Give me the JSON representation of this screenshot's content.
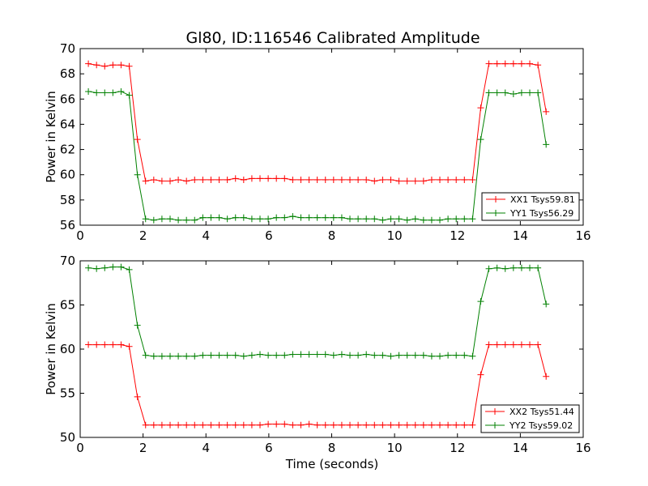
{
  "title": "Gl80, ID:116546 Calibrated Amplitude",
  "chart_data": [
    {
      "type": "line",
      "title": "Gl80, ID:116546 Calibrated Amplitude",
      "xlabel": "",
      "ylabel": "Power in Kelvin",
      "xlim": [
        0,
        16
      ],
      "ylim": [
        56,
        70
      ],
      "xticks": [
        "0",
        "2",
        "4",
        "6",
        "8",
        "10",
        "12",
        "14",
        "16"
      ],
      "yticks": [
        "56",
        "58",
        "60",
        "62",
        "64",
        "66",
        "68",
        "70"
      ],
      "grid": false,
      "legend_position": "lower-right",
      "marker": "plus",
      "x": [
        0.26,
        0.52,
        0.78,
        1.04,
        1.3,
        1.56,
        1.82,
        2.08,
        2.34,
        2.6,
        2.86,
        3.12,
        3.38,
        3.64,
        3.9,
        4.16,
        4.42,
        4.68,
        4.94,
        5.2,
        5.46,
        5.72,
        5.98,
        6.24,
        6.5,
        6.76,
        7.02,
        7.28,
        7.54,
        7.8,
        8.06,
        8.32,
        8.58,
        8.84,
        9.1,
        9.36,
        9.62,
        9.88,
        10.14,
        10.4,
        10.66,
        10.92,
        11.18,
        11.44,
        11.7,
        11.96,
        12.22,
        12.48,
        12.74,
        13.0,
        13.26,
        13.52,
        13.78,
        14.04,
        14.3,
        14.56,
        14.82
      ],
      "series": [
        {
          "name": "XX1 Tsys59.81",
          "color": "#ff0000",
          "values": [
            68.8,
            68.7,
            68.6,
            68.7,
            68.7,
            68.6,
            62.8,
            59.5,
            59.6,
            59.5,
            59.5,
            59.6,
            59.5,
            59.6,
            59.6,
            59.6,
            59.6,
            59.6,
            59.7,
            59.6,
            59.7,
            59.7,
            59.7,
            59.7,
            59.7,
            59.6,
            59.6,
            59.6,
            59.6,
            59.6,
            59.6,
            59.6,
            59.6,
            59.6,
            59.6,
            59.5,
            59.6,
            59.6,
            59.5,
            59.5,
            59.5,
            59.5,
            59.6,
            59.6,
            59.6,
            59.6,
            59.6,
            59.6,
            65.3,
            68.8,
            68.8,
            68.8,
            68.8,
            68.8,
            68.8,
            68.7,
            65.0
          ]
        },
        {
          "name": "YY1 Tsys56.29",
          "color": "#008000",
          "values": [
            66.6,
            66.5,
            66.5,
            66.5,
            66.6,
            66.3,
            60.0,
            56.5,
            56.4,
            56.5,
            56.5,
            56.4,
            56.4,
            56.4,
            56.6,
            56.6,
            56.6,
            56.5,
            56.6,
            56.6,
            56.5,
            56.5,
            56.5,
            56.6,
            56.6,
            56.7,
            56.6,
            56.6,
            56.6,
            56.6,
            56.6,
            56.6,
            56.5,
            56.5,
            56.5,
            56.5,
            56.4,
            56.5,
            56.5,
            56.4,
            56.5,
            56.4,
            56.4,
            56.4,
            56.5,
            56.5,
            56.5,
            56.5,
            62.8,
            66.5,
            66.5,
            66.5,
            66.4,
            66.5,
            66.5,
            66.5,
            62.4
          ]
        }
      ]
    },
    {
      "type": "line",
      "title": "",
      "xlabel": "Time (seconds)",
      "ylabel": "Power in Kelvin",
      "xlim": [
        0,
        16
      ],
      "ylim": [
        50,
        70
      ],
      "xticks": [
        "0",
        "2",
        "4",
        "6",
        "8",
        "10",
        "12",
        "14",
        "16"
      ],
      "yticks": [
        "50",
        "55",
        "60",
        "65",
        "70"
      ],
      "grid": false,
      "legend_position": "lower-right",
      "marker": "plus",
      "x": [
        0.26,
        0.52,
        0.78,
        1.04,
        1.3,
        1.56,
        1.82,
        2.08,
        2.34,
        2.6,
        2.86,
        3.12,
        3.38,
        3.64,
        3.9,
        4.16,
        4.42,
        4.68,
        4.94,
        5.2,
        5.46,
        5.72,
        5.98,
        6.24,
        6.5,
        6.76,
        7.02,
        7.28,
        7.54,
        7.8,
        8.06,
        8.32,
        8.58,
        8.84,
        9.1,
        9.36,
        9.62,
        9.88,
        10.14,
        10.4,
        10.66,
        10.92,
        11.18,
        11.44,
        11.7,
        11.96,
        12.22,
        12.48,
        12.74,
        13.0,
        13.26,
        13.52,
        13.78,
        14.04,
        14.3,
        14.56,
        14.82
      ],
      "series": [
        {
          "name": "XX2 Tsys51.44",
          "color": "#ff0000",
          "values": [
            60.5,
            60.5,
            60.5,
            60.5,
            60.5,
            60.3,
            54.6,
            51.4,
            51.4,
            51.4,
            51.4,
            51.4,
            51.4,
            51.4,
            51.4,
            51.4,
            51.4,
            51.4,
            51.4,
            51.4,
            51.4,
            51.4,
            51.5,
            51.5,
            51.5,
            51.4,
            51.4,
            51.5,
            51.4,
            51.4,
            51.4,
            51.4,
            51.4,
            51.4,
            51.4,
            51.4,
            51.4,
            51.4,
            51.4,
            51.4,
            51.4,
            51.4,
            51.4,
            51.4,
            51.4,
            51.4,
            51.4,
            51.4,
            57.1,
            60.5,
            60.5,
            60.5,
            60.5,
            60.5,
            60.5,
            60.5,
            56.9
          ]
        },
        {
          "name": "YY2 Tsys59.02",
          "color": "#008000",
          "values": [
            69.2,
            69.1,
            69.2,
            69.3,
            69.3,
            69.0,
            62.7,
            59.3,
            59.2,
            59.2,
            59.2,
            59.2,
            59.2,
            59.2,
            59.3,
            59.3,
            59.3,
            59.3,
            59.3,
            59.2,
            59.3,
            59.4,
            59.3,
            59.3,
            59.3,
            59.4,
            59.4,
            59.4,
            59.4,
            59.4,
            59.3,
            59.4,
            59.3,
            59.3,
            59.4,
            59.3,
            59.3,
            59.2,
            59.3,
            59.3,
            59.3,
            59.3,
            59.2,
            59.2,
            59.3,
            59.3,
            59.3,
            59.2,
            65.4,
            69.1,
            69.2,
            69.1,
            69.2,
            69.2,
            69.2,
            69.2,
            65.1
          ]
        }
      ]
    }
  ]
}
